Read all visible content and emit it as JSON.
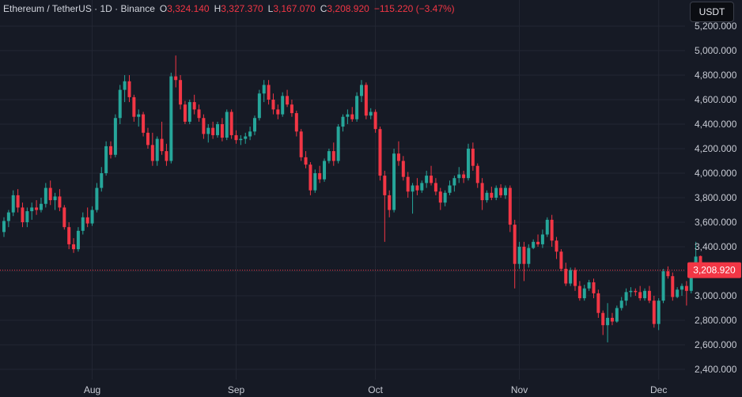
{
  "legend": {
    "symbol": "Ethereum / TetherUS · 1D · Binance",
    "open_key": "O",
    "open": "3,324.140",
    "high_key": "H",
    "high": "3,327.370",
    "low_key": "L",
    "low": "3,167.070",
    "close_key": "C",
    "close": "3,208.920",
    "change": "−115.220 (−3.47%)"
  },
  "currency_button": "USDT",
  "last_price_label": "3,208.920",
  "colors": {
    "background": "#161a25",
    "grid": "#232733",
    "up": "#26a69a",
    "down": "#f23645",
    "axis_text": "#c7cad3"
  },
  "chart_data": {
    "type": "candlestick",
    "title": "",
    "xlabel": "",
    "ylabel": "",
    "ylim": [
      2350,
      5300
    ],
    "y_ticks": [
      2400,
      2600,
      2800,
      3000,
      3200,
      3400,
      3600,
      3800,
      4000,
      4200,
      4400,
      4600,
      4800,
      5000,
      5200
    ],
    "y_tick_labels": [
      "2,400.000",
      "2,600.000",
      "2,800.000",
      "3,000.000",
      "3,200.000",
      "3,400.000",
      "3,600.000",
      "3,800.000",
      "4,000.000",
      "4,200.000",
      "4,400.000",
      "4,600.000",
      "4,800.000",
      "5,000.000",
      "5,200.000"
    ],
    "x_months": [
      {
        "label": "Aug",
        "day_index": 19
      },
      {
        "label": "Sep",
        "day_index": 50
      },
      {
        "label": "Oct",
        "day_index": 80
      },
      {
        "label": "Nov",
        "day_index": 111
      },
      {
        "label": "Dec",
        "day_index": 141
      }
    ],
    "last_price": 3208.92,
    "grid": true,
    "candles": [
      [
        3520,
        3640,
        3480,
        3610
      ],
      [
        3610,
        3700,
        3560,
        3680
      ],
      [
        3680,
        3860,
        3650,
        3820
      ],
      [
        3820,
        3870,
        3680,
        3720
      ],
      [
        3720,
        3760,
        3560,
        3600
      ],
      [
        3600,
        3720,
        3560,
        3690
      ],
      [
        3690,
        3760,
        3620,
        3720
      ],
      [
        3720,
        3780,
        3660,
        3700
      ],
      [
        3700,
        3800,
        3680,
        3750
      ],
      [
        3750,
        3920,
        3720,
        3880
      ],
      [
        3880,
        3940,
        3740,
        3780
      ],
      [
        3780,
        3840,
        3700,
        3810
      ],
      [
        3810,
        3870,
        3690,
        3720
      ],
      [
        3720,
        3740,
        3540,
        3560
      ],
      [
        3560,
        3600,
        3380,
        3420
      ],
      [
        3420,
        3470,
        3350,
        3380
      ],
      [
        3380,
        3560,
        3360,
        3530
      ],
      [
        3530,
        3680,
        3500,
        3640
      ],
      [
        3640,
        3720,
        3560,
        3590
      ],
      [
        3590,
        3730,
        3570,
        3700
      ],
      [
        3700,
        3920,
        3680,
        3880
      ],
      [
        3880,
        4050,
        3850,
        4000
      ],
      [
        4000,
        4260,
        3980,
        4220
      ],
      [
        4220,
        4260,
        4120,
        4150
      ],
      [
        4150,
        4480,
        4130,
        4450
      ],
      [
        4450,
        4720,
        4400,
        4680
      ],
      [
        4680,
        4800,
        4580,
        4750
      ],
      [
        4750,
        4800,
        4580,
        4620
      ],
      [
        4620,
        4640,
        4420,
        4460
      ],
      [
        4460,
        4520,
        4380,
        4480
      ],
      [
        4480,
        4500,
        4300,
        4330
      ],
      [
        4330,
        4370,
        4200,
        4230
      ],
      [
        4230,
        4330,
        4060,
        4100
      ],
      [
        4100,
        4300,
        4060,
        4280
      ],
      [
        4280,
        4420,
        4150,
        4180
      ],
      [
        4180,
        4240,
        4060,
        4100
      ],
      [
        4100,
        4820,
        4080,
        4790
      ],
      [
        4790,
        4960,
        4700,
        4760
      ],
      [
        4760,
        4800,
        4520,
        4560
      ],
      [
        4560,
        4590,
        4400,
        4420
      ],
      [
        4420,
        4600,
        4400,
        4580
      ],
      [
        4580,
        4640,
        4480,
        4520
      ],
      [
        4520,
        4560,
        4420,
        4450
      ],
      [
        4450,
        4480,
        4280,
        4320
      ],
      [
        4320,
        4400,
        4250,
        4370
      ],
      [
        4370,
        4420,
        4280,
        4310
      ],
      [
        4310,
        4420,
        4290,
        4400
      ],
      [
        4400,
        4450,
        4260,
        4290
      ],
      [
        4290,
        4520,
        4270,
        4500
      ],
      [
        4500,
        4520,
        4280,
        4310
      ],
      [
        4310,
        4350,
        4240,
        4270
      ],
      [
        4270,
        4310,
        4230,
        4280
      ],
      [
        4280,
        4330,
        4240,
        4300
      ],
      [
        4300,
        4380,
        4270,
        4340
      ],
      [
        4340,
        4470,
        4310,
        4450
      ],
      [
        4450,
        4680,
        4430,
        4650
      ],
      [
        4650,
        4760,
        4580,
        4720
      ],
      [
        4720,
        4760,
        4560,
        4600
      ],
      [
        4600,
        4650,
        4480,
        4520
      ],
      [
        4520,
        4560,
        4440,
        4480
      ],
      [
        4480,
        4660,
        4460,
        4630
      ],
      [
        4630,
        4680,
        4540,
        4560
      ],
      [
        4560,
        4600,
        4460,
        4490
      ],
      [
        4490,
        4510,
        4300,
        4340
      ],
      [
        4340,
        4360,
        4100,
        4130
      ],
      [
        4130,
        4180,
        4040,
        4070
      ],
      [
        4070,
        4090,
        3820,
        3860
      ],
      [
        3860,
        4030,
        3840,
        4000
      ],
      [
        4000,
        4060,
        3920,
        3950
      ],
      [
        3950,
        4120,
        3930,
        4100
      ],
      [
        4100,
        4200,
        4080,
        4180
      ],
      [
        4180,
        4250,
        4060,
        4100
      ],
      [
        4100,
        4400,
        4080,
        4380
      ],
      [
        4380,
        4480,
        4340,
        4460
      ],
      [
        4460,
        4520,
        4400,
        4480
      ],
      [
        4480,
        4540,
        4420,
        4440
      ],
      [
        4440,
        4660,
        4420,
        4630
      ],
      [
        4630,
        4760,
        4580,
        4720
      ],
      [
        4720,
        4740,
        4440,
        4470
      ],
      [
        4470,
        4530,
        4440,
        4500
      ],
      [
        4500,
        4520,
        4330,
        4360
      ],
      [
        4360,
        4380,
        3940,
        3980
      ],
      [
        3980,
        4020,
        3440,
        3820
      ],
      [
        3820,
        3860,
        3640,
        3700
      ],
      [
        3700,
        4200,
        3680,
        4160
      ],
      [
        4160,
        4260,
        4060,
        4100
      ],
      [
        4100,
        4140,
        3940,
        3970
      ],
      [
        3970,
        4010,
        3800,
        3850
      ],
      [
        3850,
        3920,
        3670,
        3900
      ],
      [
        3900,
        3960,
        3820,
        3860
      ],
      [
        3860,
        3940,
        3840,
        3920
      ],
      [
        3920,
        4020,
        3880,
        3980
      ],
      [
        3980,
        4060,
        3900,
        3920
      ],
      [
        3920,
        3960,
        3820,
        3850
      ],
      [
        3850,
        3880,
        3700,
        3760
      ],
      [
        3760,
        3860,
        3730,
        3840
      ],
      [
        3840,
        3940,
        3820,
        3900
      ],
      [
        3900,
        3980,
        3850,
        3960
      ],
      [
        3960,
        4050,
        3920,
        3990
      ],
      [
        3990,
        4020,
        3920,
        3960
      ],
      [
        3960,
        4240,
        3940,
        4200
      ],
      [
        4200,
        4250,
        4020,
        4060
      ],
      [
        4060,
        4080,
        3880,
        3920
      ],
      [
        3920,
        3960,
        3700,
        3780
      ],
      [
        3780,
        3860,
        3760,
        3840
      ],
      [
        3840,
        3890,
        3780,
        3800
      ],
      [
        3800,
        3900,
        3780,
        3880
      ],
      [
        3880,
        3910,
        3800,
        3820
      ],
      [
        3820,
        3900,
        3790,
        3880
      ],
      [
        3880,
        3900,
        3520,
        3580
      ],
      [
        3580,
        3620,
        3060,
        3260
      ],
      [
        3260,
        3440,
        3220,
        3400
      ],
      [
        3400,
        3440,
        3120,
        3260
      ],
      [
        3260,
        3420,
        3230,
        3390
      ],
      [
        3390,
        3460,
        3380,
        3440
      ],
      [
        3440,
        3500,
        3400,
        3420
      ],
      [
        3420,
        3540,
        3390,
        3500
      ],
      [
        3500,
        3640,
        3480,
        3620
      ],
      [
        3620,
        3660,
        3400,
        3450
      ],
      [
        3450,
        3480,
        3300,
        3360
      ],
      [
        3360,
        3380,
        3200,
        3220
      ],
      [
        3220,
        3270,
        3080,
        3100
      ],
      [
        3100,
        3230,
        3080,
        3210
      ],
      [
        3210,
        3230,
        3040,
        3080
      ],
      [
        3080,
        3120,
        2960,
        2980
      ],
      [
        2980,
        3090,
        2960,
        3060
      ],
      [
        3060,
        3130,
        3040,
        3110
      ],
      [
        3110,
        3140,
        2980,
        3020
      ],
      [
        3020,
        3050,
        2820,
        2860
      ],
      [
        2860,
        2880,
        2680,
        2760
      ],
      [
        2760,
        2940,
        2620,
        2820
      ],
      [
        2820,
        2860,
        2760,
        2790
      ],
      [
        2790,
        2920,
        2780,
        2900
      ],
      [
        2900,
        2990,
        2880,
        2960
      ],
      [
        2960,
        3060,
        2920,
        3030
      ],
      [
        3030,
        3070,
        2990,
        3040
      ],
      [
        3040,
        3060,
        3000,
        3030
      ],
      [
        3030,
        3080,
        2960,
        2980
      ],
      [
        2980,
        3060,
        2960,
        3040
      ],
      [
        3040,
        3080,
        2940,
        2960
      ],
      [
        2960,
        3000,
        2740,
        2770
      ],
      [
        2770,
        2980,
        2720,
        2960
      ],
      [
        2960,
        3220,
        2940,
        3200
      ],
      [
        3200,
        3240,
        3140,
        3160
      ],
      [
        3160,
        3190,
        2960,
        2990
      ],
      [
        2990,
        3070,
        2980,
        3050
      ],
      [
        3050,
        3100,
        3000,
        3080
      ],
      [
        3080,
        3120,
        2920,
        3040
      ],
      [
        3040,
        3220,
        3020,
        3180
      ],
      [
        3180,
        3440,
        3160,
        3320
      ],
      [
        3324.14,
        3327.37,
        3167.07,
        3208.92
      ]
    ]
  }
}
